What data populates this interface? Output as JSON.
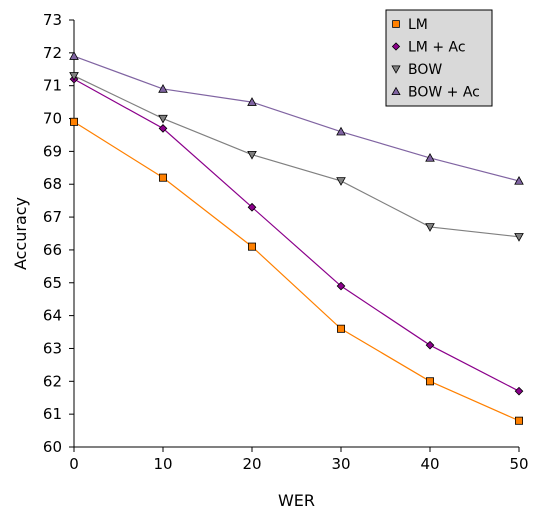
{
  "chart_data": {
    "type": "line",
    "title": "",
    "xlabel": "WER",
    "ylabel": "Accuracy",
    "x": [
      0,
      10,
      20,
      30,
      40,
      50
    ],
    "xlim": [
      0,
      50
    ],
    "ylim": [
      60,
      73
    ],
    "xticks": [
      0,
      10,
      20,
      30,
      40,
      50
    ],
    "yticks": [
      60,
      61,
      62,
      63,
      64,
      65,
      66,
      67,
      68,
      69,
      70,
      71,
      72,
      73
    ],
    "grid": false,
    "legend_position": "top-right",
    "series": [
      {
        "name": "LM",
        "marker": "square",
        "color": "#ff8000",
        "values": [
          69.9,
          68.2,
          66.1,
          63.6,
          62.0,
          60.8
        ]
      },
      {
        "name": "LM + Ac",
        "marker": "diamond",
        "color": "#8b008b",
        "values": [
          71.2,
          69.7,
          67.3,
          64.9,
          63.1,
          61.7
        ]
      },
      {
        "name": "BOW",
        "marker": "triangle-down",
        "color": "#808080",
        "values": [
          71.3,
          70.0,
          68.9,
          68.1,
          66.7,
          66.4
        ]
      },
      {
        "name": "BOW + Ac",
        "marker": "triangle-up",
        "color": "#8064a2",
        "values": [
          71.9,
          70.9,
          70.5,
          69.6,
          68.8,
          68.1
        ]
      }
    ]
  }
}
